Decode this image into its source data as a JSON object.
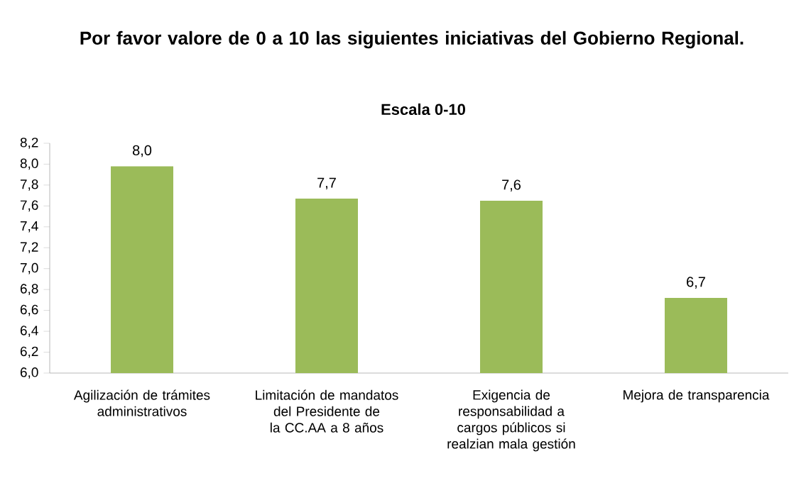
{
  "chart_data": {
    "type": "bar",
    "title": "Por favor valore de 0 a 10 las siguientes iniciativas del Gobierno Regional.",
    "subtitle": "Escala 0-10",
    "categories": [
      "Agilización de trámites administrativos",
      "Limitación de mandatos del Presidente de la CC.AA a 8 años",
      "Exigencia de responsabilidad a cargos públicos si realzian mala gestión",
      "Mejora de transparencia"
    ],
    "values": [
      7.98,
      7.67,
      7.65,
      6.72
    ],
    "value_labels": [
      "8,0",
      "7,7",
      "7,6",
      "6,7"
    ],
    "color": "#9bbb59",
    "ylim": [
      6.0,
      8.2
    ],
    "yticks": [
      {
        "value": 6.0,
        "label": "6,0"
      },
      {
        "value": 6.2,
        "label": "6,2"
      },
      {
        "value": 6.4,
        "label": "6,4"
      },
      {
        "value": 6.6,
        "label": "6,6"
      },
      {
        "value": 6.8,
        "label": "6,8"
      },
      {
        "value": 7.0,
        "label": "7,0"
      },
      {
        "value": 7.2,
        "label": "7,2"
      },
      {
        "value": 7.4,
        "label": "7,4"
      },
      {
        "value": 7.6,
        "label": "7,6"
      },
      {
        "value": 7.8,
        "label": "7,8"
      },
      {
        "value": 8.0,
        "label": "8,0"
      },
      {
        "value": 8.2,
        "label": "8,2"
      }
    ],
    "grid": false
  }
}
